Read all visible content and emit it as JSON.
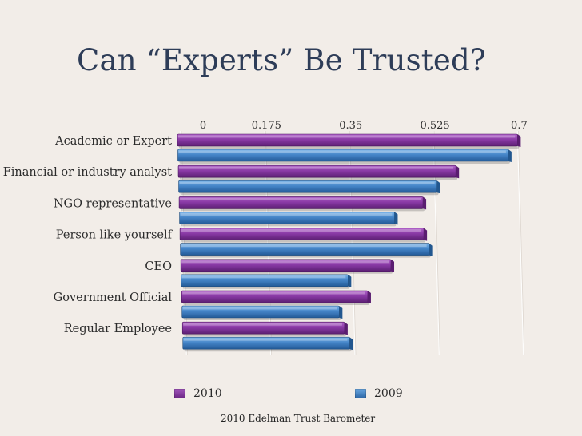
{
  "slide": {
    "title": "Can “Experts” Be Trusted?",
    "source": "2010 Edelman Trust Barometer"
  },
  "colors": {
    "series_2010": "#7a2f95",
    "series_2009": "#3a7cc0",
    "background": "#f2ede8"
  },
  "chart_data": {
    "type": "bar",
    "orientation": "horizontal",
    "title": "Can “Experts” Be Trusted?",
    "categories": [
      "Academic or Expert",
      "Financial or industry analyst",
      "NGO representative",
      "Person like yourself",
      "CEO",
      "Government Official",
      "Regular Employee"
    ],
    "series": [
      {
        "name": "2010",
        "values": [
          0.7,
          0.57,
          0.5,
          0.5,
          0.43,
          0.38,
          0.33
        ]
      },
      {
        "name": "2009",
        "values": [
          0.68,
          0.53,
          0.44,
          0.51,
          0.34,
          0.32,
          0.34
        ]
      }
    ],
    "xlim": [
      0,
      0.7
    ],
    "xticks": [
      "0",
      "0.175",
      "0.35",
      "0.525",
      "0.7"
    ],
    "grid": true,
    "legend": "bottom"
  }
}
